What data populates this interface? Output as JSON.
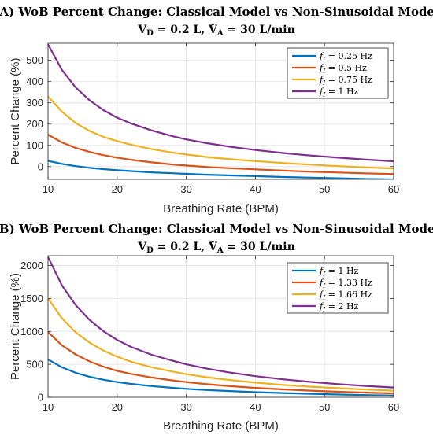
{
  "chart_data": [
    {
      "type": "line",
      "title": "(A) WoB Percent Change: Classical Model vs Non-Sinusoidal Model",
      "subtitle": "V_D = 0.2 L, V̇_A = 30 L/min",
      "xlabel": "Breathing Rate (BPM)",
      "ylabel": "Percent Change (%)",
      "xlim": [
        10,
        60
      ],
      "ylim": [
        -60,
        580
      ],
      "xticks": [
        10,
        20,
        30,
        40,
        50,
        60
      ],
      "yticks": [
        0,
        100,
        200,
        300,
        400,
        500
      ],
      "grid": true,
      "legend_position": "top-right",
      "x": [
        10,
        12,
        14,
        16,
        18,
        20,
        22,
        25,
        28,
        30,
        33,
        36,
        40,
        44,
        48,
        52,
        56,
        60
      ],
      "series": [
        {
          "name": "f_I = 0.25 Hz",
          "color": "#0072BD",
          "values": [
            27,
            13,
            2,
            -6,
            -12,
            -17,
            -21,
            -27,
            -31,
            -34,
            -38,
            -41,
            -45,
            -49,
            -52,
            -55,
            -58,
            -60
          ]
        },
        {
          "name": "f_I = 0.5 Hz",
          "color": "#D95319",
          "values": [
            150,
            114,
            88,
            69,
            54,
            42,
            32,
            20,
            10,
            5,
            -2,
            -7,
            -13,
            -19,
            -24,
            -28,
            -32,
            -35
          ]
        },
        {
          "name": "f_I = 0.75 Hz",
          "color": "#EDB120",
          "values": [
            330,
            258,
            205,
            168,
            140,
            120,
            103,
            82,
            66,
            57,
            45,
            36,
            26,
            17,
            9,
            2,
            -4,
            -9
          ]
        },
        {
          "name": "f_I = 1 Hz",
          "color": "#7E2F8E",
          "values": [
            575,
            455,
            372,
            312,
            266,
            230,
            203,
            170,
            143,
            128,
            110,
            95,
            78,
            64,
            52,
            42,
            33,
            25
          ]
        }
      ]
    },
    {
      "type": "line",
      "title": "(B) WoB Percent Change: Classical Model vs Non-Sinusoidal Model",
      "subtitle": "V_D = 0.2 L, V̇_A = 30 L/min",
      "xlabel": "Breathing Rate (BPM)",
      "ylabel": "Percent Change (%)",
      "xlim": [
        10,
        60
      ],
      "ylim": [
        0,
        2150
      ],
      "xticks": [
        10,
        20,
        30,
        40,
        50,
        60
      ],
      "yticks": [
        0,
        500,
        1000,
        1500,
        2000
      ],
      "grid": true,
      "legend_position": "top-right",
      "x": [
        10,
        12,
        14,
        16,
        18,
        20,
        22,
        25,
        28,
        30,
        33,
        36,
        40,
        44,
        48,
        52,
        56,
        60
      ],
      "series": [
        {
          "name": "f_I = 1 Hz",
          "color": "#0072BD",
          "values": [
            575,
            455,
            372,
            312,
            266,
            230,
            203,
            170,
            143,
            128,
            110,
            95,
            78,
            64,
            52,
            42,
            33,
            25
          ]
        },
        {
          "name": "f_I = 1.33 Hz",
          "color": "#D95319",
          "values": [
            990,
            790,
            650,
            545,
            465,
            400,
            355,
            300,
            256,
            230,
            198,
            172,
            142,
            119,
            100,
            84,
            70,
            58
          ]
        },
        {
          "name": "f_I = 1.66 Hz",
          "color": "#EDB120",
          "values": [
            1500,
            1200,
            985,
            830,
            710,
            615,
            540,
            455,
            390,
            350,
            303,
            265,
            222,
            188,
            160,
            137,
            117,
            100
          ]
        },
        {
          "name": "f_I = 2 Hz",
          "color": "#7E2F8E",
          "values": [
            2130,
            1700,
            1400,
            1175,
            1005,
            870,
            765,
            645,
            555,
            500,
            435,
            380,
            320,
            272,
            233,
            200,
            172,
            148
          ]
        }
      ]
    }
  ],
  "panels": [
    {
      "title": "(A) WoB Percent Change: Classical Model vs Non-Sinusoidal Model",
      "sub": {
        "vd": "V",
        "vd_sub": "D",
        "vd_rest": " = 0.2 L, ",
        "va": "V",
        "va_sub": "A",
        "va_rest": " = 30 L/min"
      },
      "legend": [
        {
          "f": "f",
          "sub": "I",
          "rest": " = 0.25 Hz"
        },
        {
          "f": "f",
          "sub": "I",
          "rest": " = 0.5 Hz"
        },
        {
          "f": "f",
          "sub": "I",
          "rest": " = 0.75 Hz"
        },
        {
          "f": "f",
          "sub": "I",
          "rest": " = 1 Hz"
        }
      ]
    },
    {
      "title": "(B) WoB Percent Change: Classical Model vs Non-Sinusoidal Model",
      "sub": {
        "vd": "V",
        "vd_sub": "D",
        "vd_rest": " = 0.2 L, ",
        "va": "V",
        "va_sub": "A",
        "va_rest": " = 30 L/min"
      },
      "legend": [
        {
          "f": "f",
          "sub": "I",
          "rest": " = 1 Hz"
        },
        {
          "f": "f",
          "sub": "I",
          "rest": " = 1.33 Hz"
        },
        {
          "f": "f",
          "sub": "I",
          "rest": " = 1.66 Hz"
        },
        {
          "f": "f",
          "sub": "I",
          "rest": " = 2 Hz"
        }
      ]
    }
  ]
}
